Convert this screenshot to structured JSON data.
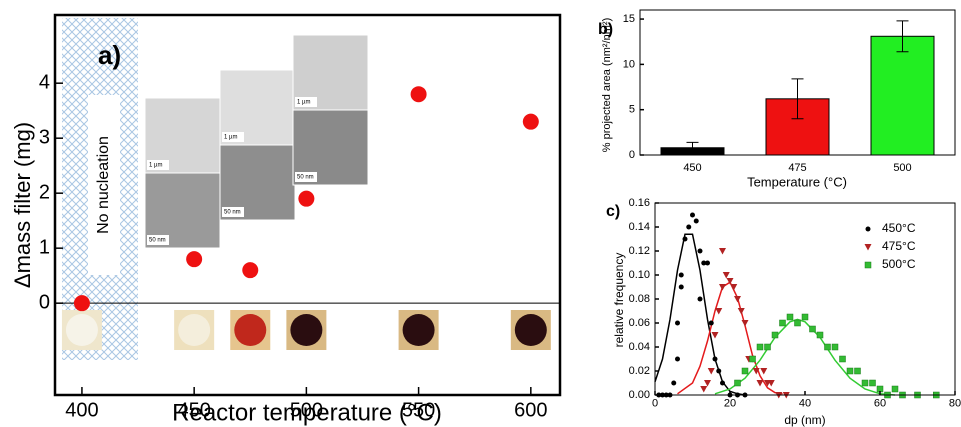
{
  "chart_data": [
    {
      "type": "scatter",
      "panel_label": "a)",
      "annotation": "No nucleation",
      "x_label": "Reactor temperature (°C)",
      "y_label": "Δmass filter (mg)",
      "x": [
        400,
        450,
        475,
        500,
        550,
        600
      ],
      "values": [
        0,
        0.8,
        0.6,
        1.9,
        3.8,
        3.3
      ],
      "color": "#ee1111",
      "xlim": [
        388,
        613
      ],
      "ylim": [
        -1.67,
        5.24
      ],
      "xticks": [
        400,
        450,
        500,
        550,
        600
      ],
      "yticks": [
        0,
        1,
        2,
        3,
        4
      ],
      "insets": [
        {
          "label": "1 µm"
        },
        {
          "label": "50 nm"
        },
        {
          "label": "1 µm"
        },
        {
          "label": "50 nm"
        },
        {
          "label": "1 µm"
        },
        {
          "label": "50 nm"
        }
      ]
    },
    {
      "type": "bar",
      "panel_label": "b)",
      "x_label": "Temperature (°C)",
      "y_label": "% projected area (nm²/nm²)",
      "categories": [
        "450",
        "475",
        "500"
      ],
      "values": [
        0.8,
        6.2,
        13.1
      ],
      "errors": [
        0.6,
        2.2,
        1.7
      ],
      "colors": [
        "#000000",
        "#ee1111",
        "#22ee22"
      ],
      "ylim": [
        0,
        16
      ],
      "yticks": [
        0,
        5,
        10,
        15
      ]
    },
    {
      "type": "scatter",
      "panel_label": "c)",
      "x_label": "dp (nm)",
      "y_label": "relative frequency",
      "xlim": [
        0,
        80
      ],
      "ylim": [
        0,
        0.16
      ],
      "xticks": [
        0,
        20,
        40,
        60,
        80
      ],
      "yticks": [
        {
          "value": 0,
          "label": "0.00"
        },
        {
          "value": 0.02,
          "label": "0.02"
        },
        {
          "value": 0.04,
          "label": "0.04"
        },
        {
          "value": 0.06,
          "label": "0.06"
        },
        {
          "value": 0.08,
          "label": "0.08"
        },
        {
          "value": 0.1,
          "label": "0.10"
        },
        {
          "value": 0.12,
          "label": "0.12"
        },
        {
          "value": 0.14,
          "label": "0.14"
        },
        {
          "value": 0.16,
          "label": "0.16"
        }
      ],
      "series": [
        {
          "name": "450°C",
          "color": "#000000",
          "marker": "circle",
          "x": [
            1,
            2,
            3,
            4,
            5,
            6,
            6,
            7,
            7,
            8,
            9,
            10,
            11,
            12,
            12,
            13,
            14,
            15,
            16,
            17,
            18,
            20,
            22,
            24
          ],
          "values": [
            0,
            0,
            0,
            0,
            0.01,
            0.03,
            0.06,
            0.09,
            0.1,
            0.13,
            0.14,
            0.15,
            0.145,
            0.12,
            0.08,
            0.11,
            0.11,
            0.06,
            0.03,
            0.02,
            0.01,
            0,
            0,
            0
          ]
        },
        {
          "name": "475°C",
          "color": "#b22222",
          "marker": "triangle",
          "x": [
            13,
            14,
            15,
            16,
            17,
            18,
            18,
            19,
            20,
            21,
            22,
            23,
            24,
            25,
            26,
            27,
            28,
            29,
            30,
            31,
            33,
            35
          ],
          "values": [
            0.005,
            0.01,
            0.02,
            0.05,
            0.07,
            0.09,
            0.12,
            0.1,
            0.095,
            0.09,
            0.08,
            0.07,
            0.06,
            0.03,
            0.03,
            0.02,
            0.01,
            0.02,
            0.01,
            0.01,
            0,
            0
          ]
        },
        {
          "name": "500°C",
          "color": "#33bb33",
          "marker": "square",
          "x": [
            22,
            24,
            26,
            28,
            30,
            32,
            34,
            36,
            38,
            40,
            42,
            44,
            46,
            48,
            50,
            52,
            54,
            56,
            58,
            60,
            62,
            64,
            66,
            70,
            75
          ],
          "values": [
            0.01,
            0.02,
            0.03,
            0.04,
            0.04,
            0.05,
            0.06,
            0.065,
            0.06,
            0.065,
            0.055,
            0.05,
            0.04,
            0.04,
            0.03,
            0.02,
            0.02,
            0.01,
            0.01,
            0.005,
            0,
            0.005,
            0,
            0,
            0
          ]
        }
      ],
      "fits": [
        {
          "color": "#000000",
          "x": [
            0,
            2,
            4,
            6,
            8,
            10,
            12,
            14,
            16,
            18,
            20,
            22,
            24
          ],
          "values": [
            0.011,
            0.03,
            0.063,
            0.104,
            0.134,
            0.134,
            0.104,
            0.063,
            0.03,
            0.011,
            0.003,
            0.001,
            0
          ]
        },
        {
          "color": "#e41a1c",
          "x": [
            6,
            10,
            12,
            14,
            16,
            18,
            20,
            22,
            24,
            26,
            28,
            30,
            32,
            34
          ],
          "values": [
            0.001,
            0.01,
            0.024,
            0.045,
            0.07,
            0.09,
            0.094,
            0.081,
            0.058,
            0.033,
            0.016,
            0.006,
            0.002,
            0.001
          ]
        },
        {
          "color": "#33cc33",
          "x": [
            16,
            20,
            24,
            28,
            32,
            36,
            38,
            40,
            44,
            48,
            52,
            56,
            60,
            64
          ],
          "values": [
            0.001,
            0.005,
            0.014,
            0.029,
            0.048,
            0.061,
            0.063,
            0.061,
            0.048,
            0.029,
            0.014,
            0.005,
            0.001,
            0
          ]
        }
      ]
    }
  ]
}
